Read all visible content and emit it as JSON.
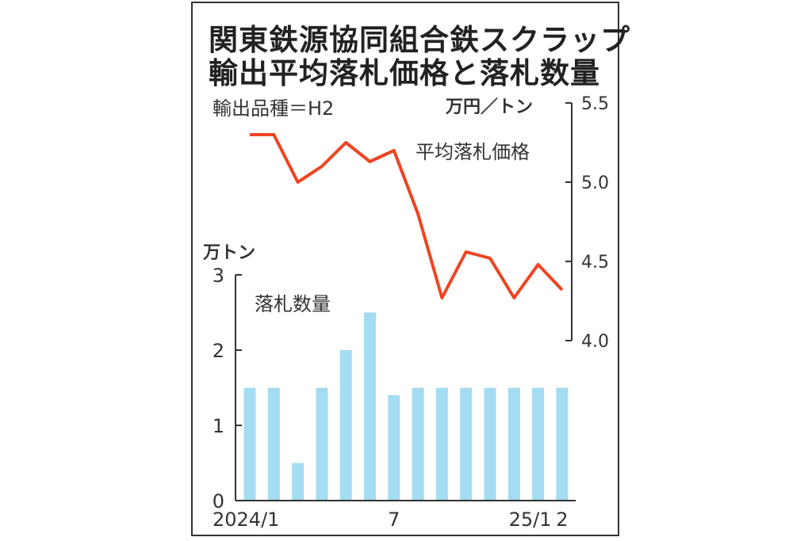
{
  "chart_data": {
    "type": "bar+line",
    "title": [
      "関東鉄源協同組合鉄スクラップ",
      "輸出平均落札価格と落札数量"
    ],
    "subtitle": "輸出品種＝H2",
    "x_tick_labels": [
      "2024/1",
      "7",
      "25/1",
      "2"
    ],
    "months": [
      "2024/1",
      "2024/2",
      "2024/3",
      "2024/4",
      "2024/5",
      "2024/6",
      "2024/7",
      "2024/8",
      "2024/9",
      "2024/10",
      "2024/11",
      "2024/12",
      "2025/1",
      "2025/2"
    ],
    "price": {
      "label": "平均落札価格",
      "unit": "万円／トン",
      "values": [
        5.3,
        5.3,
        5.0,
        5.1,
        5.25,
        5.13,
        5.2,
        4.8,
        4.27,
        4.56,
        4.52,
        4.27,
        4.48,
        4.32
      ],
      "ylim": [
        4.0,
        5.5
      ],
      "ticks": [
        "4.0",
        "4.5",
        "5.0",
        "5.5"
      ],
      "color": "#ee4422"
    },
    "quantity": {
      "label": "落札数量",
      "unit": "万トン",
      "values": [
        1.5,
        1.5,
        0.5,
        1.5,
        2.0,
        2.5,
        1.4,
        1.5,
        1.5,
        1.5,
        1.5,
        1.5,
        1.5,
        1.5
      ],
      "ylim": [
        0,
        3
      ],
      "ticks": [
        "0",
        "1",
        "2",
        "3"
      ],
      "color": "#a4dcf2"
    },
    "grid": false
  }
}
